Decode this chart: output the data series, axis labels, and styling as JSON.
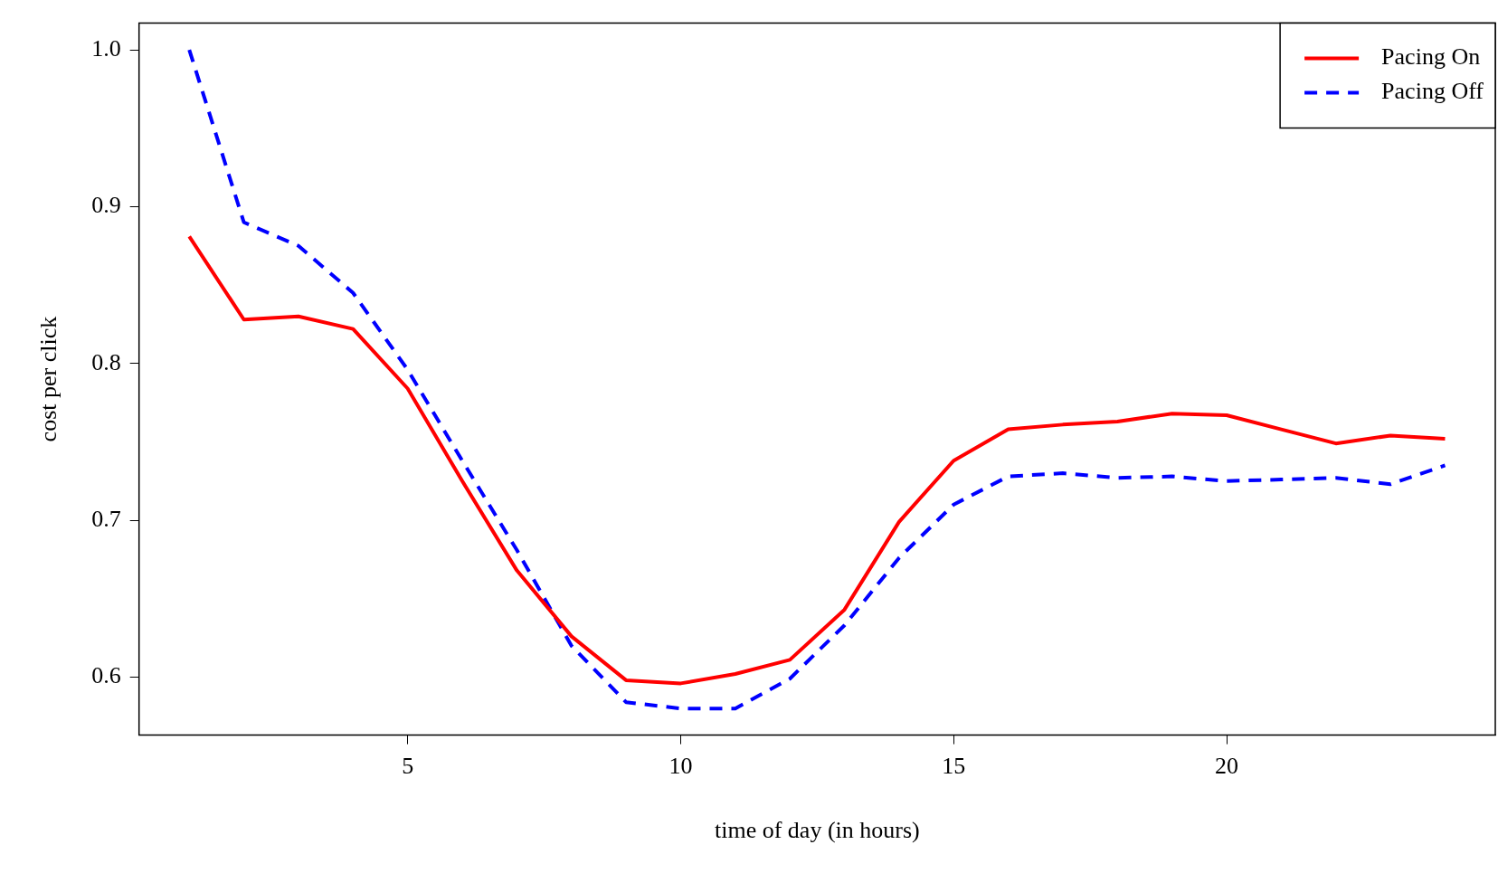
{
  "chart_data": {
    "type": "line",
    "xlabel": "time of day (in hours)",
    "ylabel": "cost per click",
    "x": [
      1,
      2,
      3,
      4,
      5,
      6,
      7,
      8,
      9,
      10,
      11,
      12,
      13,
      14,
      15,
      16,
      17,
      18,
      19,
      20,
      21,
      22,
      23,
      24
    ],
    "series": [
      {
        "name": "Pacing On",
        "color": "#ff0000",
        "line_style": "solid",
        "values": [
          0.881,
          0.828,
          0.83,
          0.822,
          0.784,
          0.725,
          0.668,
          0.626,
          0.598,
          0.596,
          0.602,
          0.611,
          0.643,
          0.699,
          0.738,
          0.758,
          0.761,
          0.763,
          0.768,
          0.767,
          0.758,
          0.749,
          0.754,
          0.752
        ]
      },
      {
        "name": "Pacing Off",
        "color": "#0000ff",
        "line_style": "dashed",
        "values": [
          1.0,
          0.89,
          0.875,
          0.845,
          0.796,
          0.738,
          0.681,
          0.62,
          0.584,
          0.58,
          0.58,
          0.599,
          0.633,
          0.676,
          0.71,
          0.728,
          0.73,
          0.727,
          0.728,
          0.725,
          0.726,
          0.727,
          0.723,
          0.735
        ]
      }
    ],
    "xlim": [
      0.08,
      24.92
    ],
    "xticks": [
      5,
      10,
      15,
      20
    ],
    "ylim": [
      0.563,
      1.017
    ],
    "yticks": [
      0.6,
      0.7,
      0.8,
      0.9,
      {
        "value": 1,
        "label": "1.0"
      }
    ],
    "legend": "top right",
    "grid": false,
    "marker": "none"
  }
}
